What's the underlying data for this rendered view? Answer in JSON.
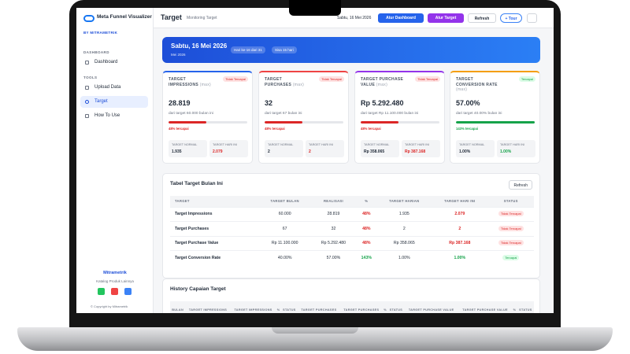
{
  "sidebar": {
    "app_name": "Meta Funnel Visualizer",
    "byline": "BY MITRAMETRIK",
    "sections": [
      {
        "label": "DASHBOARD",
        "items": [
          "Dashboard"
        ]
      },
      {
        "label": "TOOLS",
        "items": [
          "Upload Data",
          "Target",
          "How To Use"
        ]
      }
    ],
    "footer": {
      "brand": "Mitrametrik",
      "catalog": "Katalog Produk Lainnya",
      "copyright": "© Copyright by Mitrametrik"
    }
  },
  "header": {
    "title": "Target",
    "subtitle": "Monitoring Target",
    "date": "Sabtu, 16 Mei 2026",
    "buttons": [
      "Atur Dashboard",
      "Atur Target",
      "Refresh",
      "+ Tour"
    ]
  },
  "banner": {
    "date": "Sabtu, 16 Mei 2026",
    "month": "Mei 2026",
    "chips": [
      "Hari ke-16 dari 31",
      "Sisa 15 hari"
    ]
  },
  "cards": [
    {
      "title": "TARGET IMPRESSIONS",
      "qualifier": "(max)",
      "status": "Tidak Tercapai",
      "value": "28.819",
      "target_text": "dari target 60.000 bulan ini",
      "progress": 48,
      "progress_label": "48% tercapai",
      "normal_label": "TARGET NORMAL",
      "normal": "1.935",
      "today_label": "TARGET HARI INI",
      "today": "2.079"
    },
    {
      "title": "TARGET PURCHASES",
      "qualifier": "(max)",
      "status": "Tidak Tercapai",
      "value": "32",
      "target_text": "dari target 67 bulan ini",
      "progress": 48,
      "progress_label": "48% tercapai",
      "normal_label": "TARGET NORMAL",
      "normal": "2",
      "today_label": "TARGET HARI INI",
      "today": "2"
    },
    {
      "title": "TARGET PURCHASE VALUE",
      "qualifier": "(max)",
      "status": "Tidak Tercapai",
      "value": "Rp 5.292.480",
      "target_text": "dari target Rp 11.100.000 bulan ini",
      "progress": 48,
      "progress_label": "48% tercapai",
      "normal_label": "TARGET NORMAL",
      "normal": "Rp 358.065",
      "today_label": "TARGET HARI INI",
      "today": "Rp 387.168"
    },
    {
      "title": "TARGET CONVERSION RATE",
      "qualifier": "(max)",
      "status": "Tercapai",
      "value": "57.00%",
      "target_text": "dari target 40.00% bulan ini",
      "progress": 143,
      "progress_label": "143% tercapai",
      "normal_label": "TARGET NORMAL",
      "normal": "1.00%",
      "today_label": "TARGET HARI INI",
      "today": "1.00%"
    }
  ],
  "table": {
    "title": "Tabel Target Bulan Ini",
    "button": "Refresh",
    "columns": [
      "TARGET",
      "TARGET BULAN",
      "REALISASI",
      "%",
      "TARGET HARIAN",
      "TARGET HARI INI",
      "STATUS"
    ],
    "rows": [
      [
        "Target Impressions",
        "60.000",
        "28.819",
        "48%",
        "1.935",
        "2.079",
        "Tidak Tercapai"
      ],
      [
        "Target Purchases",
        "67",
        "32",
        "48%",
        "2",
        "2",
        "Tidak Tercapai"
      ],
      [
        "Target Purchase Value",
        "Rp 11.100.000",
        "Rp 5.292.480",
        "48%",
        "Rp 358.065",
        "Rp 387.168",
        "Tidak Tercapai"
      ],
      [
        "Target Conversion Rate",
        "40.00%",
        "57.00%",
        "143%",
        "1.00%",
        "1.00%",
        "Tercapai"
      ]
    ]
  },
  "history": {
    "title": "History Capaian Target",
    "columns": [
      "BULAN",
      "TARGET IMPRESSIONS",
      "TARGET IMPRESSIONS",
      "%",
      "STATUS",
      "TARGET PURCHASES",
      "TARGET PURCHASES",
      "%",
      "STATUS",
      "TARGET PURCHASE VALUE",
      "TARGET PURCHASE VALUE",
      "%",
      "STATUS"
    ]
  }
}
